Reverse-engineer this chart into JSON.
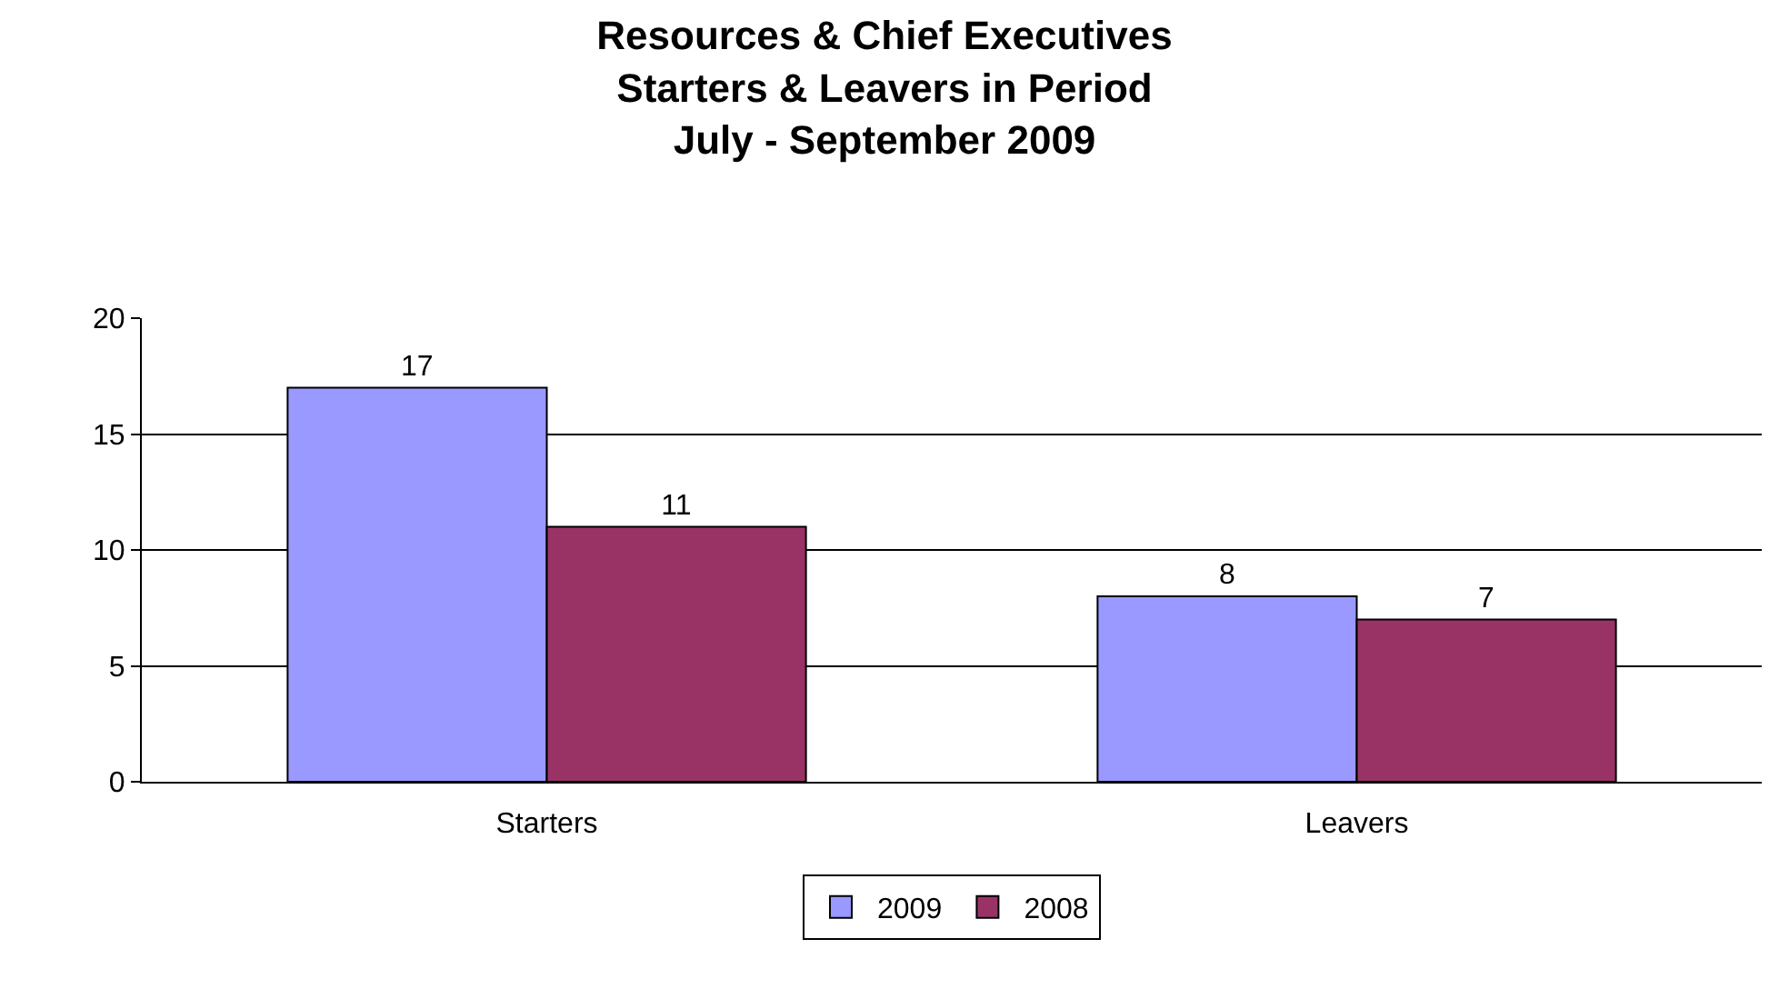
{
  "chart_data": {
    "type": "bar",
    "title": "Resources & Chief Executives\nStarters & Leavers in Period\nJuly - September 2009",
    "categories": [
      "Starters",
      "Leavers"
    ],
    "series": [
      {
        "name": "2009",
        "color": "#9999ff",
        "values": [
          17,
          8
        ]
      },
      {
        "name": "2008",
        "color": "#993366",
        "values": [
          11,
          7
        ]
      }
    ],
    "ylim": [
      0,
      20
    ],
    "yticks": [
      0,
      5,
      10,
      15,
      20
    ],
    "grid": "y",
    "legend": "bottom",
    "data_labels": true
  }
}
